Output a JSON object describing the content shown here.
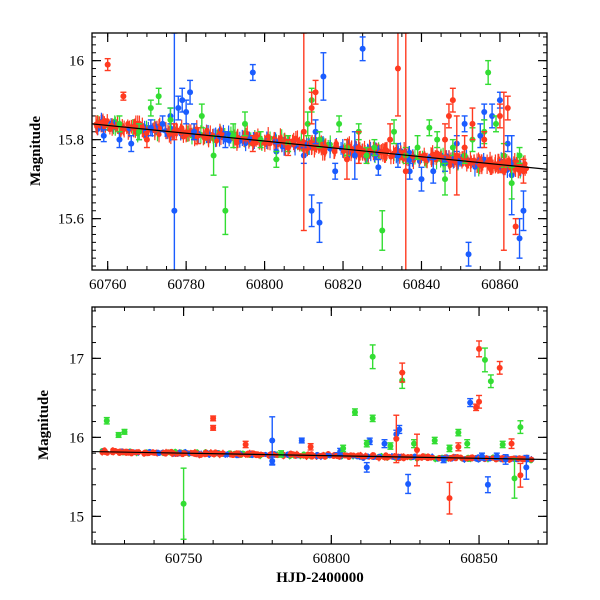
{
  "chart_data": [
    {
      "type": "scatter",
      "panel": "top",
      "title": "",
      "xlabel": "",
      "ylabel": "Magnitude",
      "xlim": [
        60756,
        60872
      ],
      "ylim": [
        16.07,
        15.47
      ],
      "y_inverted": true,
      "x_ticks": [
        60760,
        60780,
        60800,
        60820,
        60840,
        60860
      ],
      "y_ticks": [
        15.6,
        15.8,
        16
      ],
      "x_tick_labels": [
        "60760",
        "60780",
        "60800",
        "60820",
        "60840",
        "60860"
      ],
      "y_tick_labels": [
        "15.6",
        "15.8",
        "16"
      ],
      "trend_line": [
        [
          60756,
          15.84
        ],
        [
          60872,
          15.725
        ]
      ],
      "series": [
        {
          "color": "#1a5cff",
          "points": [
            {
              "x": 60759,
              "y": 15.81,
              "e": 0.015
            },
            {
              "x": 60763,
              "y": 15.8,
              "e": 0.02
            },
            {
              "x": 60766,
              "y": 15.79,
              "e": 0.02
            },
            {
              "x": 60768,
              "y": 15.82,
              "e": 0.02
            },
            {
              "x": 60771,
              "y": 15.83,
              "e": 0.02
            },
            {
              "x": 60774,
              "y": 15.84,
              "e": 0.02
            },
            {
              "x": 60776,
              "y": 15.86,
              "e": 0.02
            },
            {
              "x": 60777,
              "y": 15.62,
              "e": 0.45
            },
            {
              "x": 60778,
              "y": 15.88,
              "e": 0.03
            },
            {
              "x": 60779,
              "y": 15.9,
              "e": 0.03
            },
            {
              "x": 60780,
              "y": 15.87,
              "e": 0.03
            },
            {
              "x": 60781,
              "y": 15.92,
              "e": 0.03
            },
            {
              "x": 60782,
              "y": 15.82,
              "e": 0.02
            },
            {
              "x": 60790,
              "y": 15.8,
              "e": 0.02
            },
            {
              "x": 60797,
              "y": 15.97,
              "e": 0.02
            },
            {
              "x": 60803,
              "y": 15.77,
              "e": 0.02
            },
            {
              "x": 60810,
              "y": 15.76,
              "e": 0.02
            },
            {
              "x": 60812,
              "y": 15.62,
              "e": 0.04
            },
            {
              "x": 60813,
              "y": 15.82,
              "e": 0.03
            },
            {
              "x": 60814,
              "y": 15.59,
              "e": 0.05
            },
            {
              "x": 60815,
              "y": 15.96,
              "e": 0.06
            },
            {
              "x": 60818,
              "y": 15.72,
              "e": 0.02
            },
            {
              "x": 60823,
              "y": 15.76,
              "e": 0.06
            },
            {
              "x": 60825,
              "y": 16.03,
              "e": 0.03
            },
            {
              "x": 60829,
              "y": 15.73,
              "e": 0.02
            },
            {
              "x": 60834,
              "y": 15.76,
              "e": 0.03
            },
            {
              "x": 60837,
              "y": 15.72,
              "e": 0.02
            },
            {
              "x": 60840,
              "y": 15.7,
              "e": 0.03
            },
            {
              "x": 60843,
              "y": 15.72,
              "e": 0.03
            },
            {
              "x": 60846,
              "y": 15.74,
              "e": 0.02
            },
            {
              "x": 60849,
              "y": 15.79,
              "e": 0.02
            },
            {
              "x": 60851,
              "y": 15.84,
              "e": 0.02
            },
            {
              "x": 60852,
              "y": 15.51,
              "e": 0.03
            },
            {
              "x": 60855,
              "y": 15.81,
              "e": 0.03
            },
            {
              "x": 60856,
              "y": 15.87,
              "e": 0.02
            },
            {
              "x": 60858,
              "y": 15.86,
              "e": 0.03
            },
            {
              "x": 60860,
              "y": 15.9,
              "e": 0.02
            },
            {
              "x": 60862,
              "y": 15.79,
              "e": 0.02
            },
            {
              "x": 60863,
              "y": 15.71,
              "e": 0.1
            },
            {
              "x": 60865,
              "y": 15.55,
              "e": 0.05
            },
            {
              "x": 60866,
              "y": 15.62,
              "e": 0.05
            }
          ]
        },
        {
          "color": "#33dd33",
          "points": [
            {
              "x": 60763,
              "y": 15.84,
              "e": 0.02
            },
            {
              "x": 60768,
              "y": 15.82,
              "e": 0.02
            },
            {
              "x": 60771,
              "y": 15.88,
              "e": 0.02
            },
            {
              "x": 60773,
              "y": 15.91,
              "e": 0.02
            },
            {
              "x": 60776,
              "y": 15.85,
              "e": 0.03
            },
            {
              "x": 60784,
              "y": 15.86,
              "e": 0.03
            },
            {
              "x": 60787,
              "y": 15.76,
              "e": 0.05
            },
            {
              "x": 60790,
              "y": 15.62,
              "e": 0.06
            },
            {
              "x": 60792,
              "y": 15.81,
              "e": 0.03
            },
            {
              "x": 60795,
              "y": 15.84,
              "e": 0.03
            },
            {
              "x": 60799,
              "y": 15.8,
              "e": 0.02
            },
            {
              "x": 60803,
              "y": 15.75,
              "e": 0.02
            },
            {
              "x": 60806,
              "y": 15.79,
              "e": 0.02
            },
            {
              "x": 60811,
              "y": 15.84,
              "e": 0.03
            },
            {
              "x": 60812,
              "y": 15.9,
              "e": 0.03
            },
            {
              "x": 60814,
              "y": 15.8,
              "e": 0.02
            },
            {
              "x": 60819,
              "y": 15.84,
              "e": 0.02
            },
            {
              "x": 60821,
              "y": 15.78,
              "e": 0.02
            },
            {
              "x": 60824,
              "y": 15.82,
              "e": 0.02
            },
            {
              "x": 60826,
              "y": 15.76,
              "e": 0.02
            },
            {
              "x": 60828,
              "y": 15.78,
              "e": 0.02
            },
            {
              "x": 60830,
              "y": 15.57,
              "e": 0.05
            },
            {
              "x": 60833,
              "y": 15.82,
              "e": 0.03
            },
            {
              "x": 60836,
              "y": 15.76,
              "e": 0.02
            },
            {
              "x": 60839,
              "y": 15.78,
              "e": 0.03
            },
            {
              "x": 60842,
              "y": 15.83,
              "e": 0.02
            },
            {
              "x": 60844,
              "y": 15.8,
              "e": 0.02
            },
            {
              "x": 60846,
              "y": 15.7,
              "e": 0.04
            },
            {
              "x": 60848,
              "y": 15.78,
              "e": 0.02
            },
            {
              "x": 60851,
              "y": 15.76,
              "e": 0.02
            },
            {
              "x": 60853,
              "y": 15.8,
              "e": 0.03
            },
            {
              "x": 60856,
              "y": 15.82,
              "e": 0.03
            },
            {
              "x": 60857,
              "y": 15.97,
              "e": 0.03
            },
            {
              "x": 60859,
              "y": 15.84,
              "e": 0.02
            },
            {
              "x": 60861,
              "y": 15.76,
              "e": 0.03
            },
            {
              "x": 60863,
              "y": 15.69,
              "e": 0.04
            },
            {
              "x": 60865,
              "y": 15.76,
              "e": 0.02
            }
          ]
        },
        {
          "color": "#ff3a20",
          "points": [
            {
              "x": 60760,
              "y": 15.99,
              "e": 0.015
            },
            {
              "x": 60764,
              "y": 15.91,
              "e": 0.01
            },
            {
              "x": 60770,
              "y": 15.8,
              "e": 0.02
            },
            {
              "x": 60777,
              "y": 15.82,
              "e": 0.02
            },
            {
              "x": 60783,
              "y": 15.81,
              "e": 0.02
            },
            {
              "x": 60797,
              "y": 15.79,
              "e": 0.02
            },
            {
              "x": 60806,
              "y": 15.78,
              "e": 0.02
            },
            {
              "x": 60810,
              "y": 15.82,
              "e": 0.25
            },
            {
              "x": 60812,
              "y": 15.88,
              "e": 0.04
            },
            {
              "x": 60813,
              "y": 15.92,
              "e": 0.03
            },
            {
              "x": 60821,
              "y": 15.75,
              "e": 0.05
            },
            {
              "x": 60824,
              "y": 15.78,
              "e": 0.04
            },
            {
              "x": 60832,
              "y": 15.8,
              "e": 0.04
            },
            {
              "x": 60834,
              "y": 15.98,
              "e": 0.12
            },
            {
              "x": 60836,
              "y": 15.72,
              "e": 0.35
            },
            {
              "x": 60846,
              "y": 15.8,
              "e": 0.04
            },
            {
              "x": 60847,
              "y": 15.86,
              "e": 0.03
            },
            {
              "x": 60848,
              "y": 15.9,
              "e": 0.03
            },
            {
              "x": 60849,
              "y": 15.76,
              "e": 0.1
            },
            {
              "x": 60851,
              "y": 15.78,
              "e": 0.03
            },
            {
              "x": 60853,
              "y": 15.84,
              "e": 0.04
            },
            {
              "x": 60856,
              "y": 15.8,
              "e": 0.02
            },
            {
              "x": 60860,
              "y": 15.86,
              "e": 0.03
            },
            {
              "x": 60861,
              "y": 15.72,
              "e": 0.2
            },
            {
              "x": 60862,
              "y": 15.88,
              "e": 0.03
            },
            {
              "x": 60864,
              "y": 15.58,
              "e": 0.02
            },
            {
              "x": 60866,
              "y": 15.72,
              "e": 0.03
            }
          ]
        }
      ]
    },
    {
      "type": "scatter",
      "panel": "bottom",
      "title": "",
      "xlabel": "HJD-2400000",
      "ylabel": "Magnitude",
      "xlim": [
        60719,
        60873
      ],
      "ylim": [
        17.65,
        14.65
      ],
      "y_inverted": true,
      "x_ticks": [
        60750,
        60800,
        60850
      ],
      "y_ticks": [
        15,
        16,
        17
      ],
      "x_tick_labels": [
        "60750",
        "60800",
        "60850"
      ],
      "y_tick_labels": [
        "15",
        "16",
        "17"
      ],
      "trend_line": [
        [
          60719,
          15.82
        ],
        [
          60873,
          15.72
        ]
      ],
      "series": [
        {
          "color": "#1a5cff",
          "points": [
            {
              "x": 60780,
              "y": 15.96,
              "e": 0.3
            },
            {
              "x": 60780,
              "y": 15.7,
              "e": 0.05
            },
            {
              "x": 60790,
              "y": 15.96,
              "e": 0.03
            },
            {
              "x": 60803,
              "y": 15.82,
              "e": 0.04
            },
            {
              "x": 60812,
              "y": 15.62,
              "e": 0.06
            },
            {
              "x": 60813,
              "y": 15.95,
              "e": 0.04
            },
            {
              "x": 60818,
              "y": 15.92,
              "e": 0.05
            },
            {
              "x": 60822,
              "y": 16.04,
              "e": 0.05
            },
            {
              "x": 60823,
              "y": 16.1,
              "e": 0.05
            },
            {
              "x": 60826,
              "y": 15.41,
              "e": 0.12
            },
            {
              "x": 60838,
              "y": 15.72,
              "e": 0.04
            },
            {
              "x": 60847,
              "y": 16.44,
              "e": 0.05
            },
            {
              "x": 60851,
              "y": 15.76,
              "e": 0.04
            },
            {
              "x": 60853,
              "y": 15.4,
              "e": 0.1
            },
            {
              "x": 60856,
              "y": 15.76,
              "e": 0.04
            },
            {
              "x": 60859,
              "y": 15.72,
              "e": 0.06
            },
            {
              "x": 60866,
              "y": 15.62,
              "e": 0.15
            }
          ]
        },
        {
          "color": "#33dd33",
          "points": [
            {
              "x": 60724,
              "y": 16.21,
              "e": 0.04
            },
            {
              "x": 60728,
              "y": 16.03,
              "e": 0.03
            },
            {
              "x": 60730,
              "y": 16.07,
              "e": 0.03
            },
            {
              "x": 60750,
              "y": 15.16,
              "e": 0.45
            },
            {
              "x": 60783,
              "y": 15.79,
              "e": 0.04
            },
            {
              "x": 60804,
              "y": 15.86,
              "e": 0.04
            },
            {
              "x": 60808,
              "y": 16.32,
              "e": 0.04
            },
            {
              "x": 60812,
              "y": 15.92,
              "e": 0.04
            },
            {
              "x": 60814,
              "y": 16.24,
              "e": 0.04
            },
            {
              "x": 60814,
              "y": 17.02,
              "e": 0.15
            },
            {
              "x": 60820,
              "y": 15.89,
              "e": 0.04
            },
            {
              "x": 60824,
              "y": 16.72,
              "e": 0.1
            },
            {
              "x": 60828,
              "y": 15.92,
              "e": 0.05
            },
            {
              "x": 60835,
              "y": 15.96,
              "e": 0.04
            },
            {
              "x": 60840,
              "y": 15.86,
              "e": 0.04
            },
            {
              "x": 60843,
              "y": 16.06,
              "e": 0.04
            },
            {
              "x": 60846,
              "y": 15.92,
              "e": 0.05
            },
            {
              "x": 60852,
              "y": 16.98,
              "e": 0.15
            },
            {
              "x": 60854,
              "y": 16.71,
              "e": 0.08
            },
            {
              "x": 60858,
              "y": 15.91,
              "e": 0.04
            },
            {
              "x": 60862,
              "y": 15.48,
              "e": 0.25
            },
            {
              "x": 60864,
              "y": 16.13,
              "e": 0.08
            }
          ]
        },
        {
          "color": "#ff3a20",
          "points": [
            {
              "x": 60760,
              "y": 16.24,
              "e": 0.03
            },
            {
              "x": 60760,
              "y": 16.12,
              "e": 0.03
            },
            {
              "x": 60771,
              "y": 15.91,
              "e": 0.04
            },
            {
              "x": 60793,
              "y": 15.88,
              "e": 0.04
            },
            {
              "x": 60822,
              "y": 15.98,
              "e": 0.3
            },
            {
              "x": 60824,
              "y": 16.82,
              "e": 0.12
            },
            {
              "x": 60829,
              "y": 15.84,
              "e": 0.2
            },
            {
              "x": 60840,
              "y": 15.23,
              "e": 0.2
            },
            {
              "x": 60843,
              "y": 15.88,
              "e": 0.05
            },
            {
              "x": 60849,
              "y": 16.38,
              "e": 0.04
            },
            {
              "x": 60850,
              "y": 16.45,
              "e": 0.08
            },
            {
              "x": 60850,
              "y": 17.12,
              "e": 0.1
            },
            {
              "x": 60857,
              "y": 16.88,
              "e": 0.08
            },
            {
              "x": 60861,
              "y": 15.92,
              "e": 0.06
            },
            {
              "x": 60864,
              "y": 15.52,
              "e": 0.15
            }
          ]
        }
      ]
    }
  ]
}
